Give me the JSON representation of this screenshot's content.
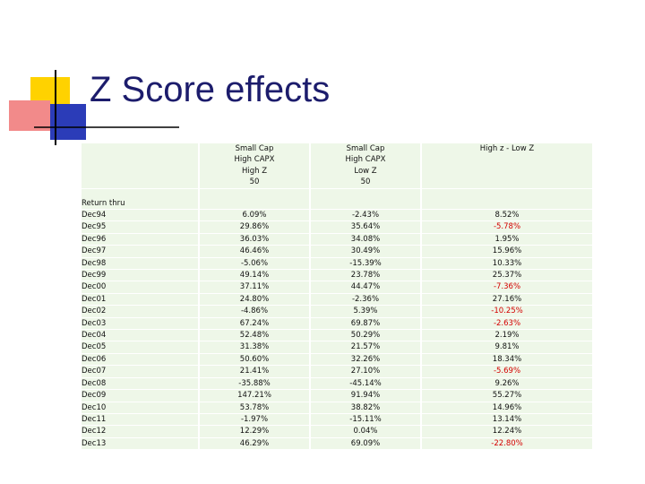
{
  "title": "Z Score effects",
  "table": {
    "columns": [
      {
        "lines": [
          "Small Cap",
          "High CAPX",
          "High Z",
          "50"
        ]
      },
      {
        "lines": [
          "Small Cap",
          "High CAPX",
          "Low Z",
          "50"
        ]
      },
      {
        "lines": [
          "High z - Low Z"
        ]
      }
    ],
    "row_label_header": "Return thru",
    "rows": [
      [
        "Dec94",
        "6.09%",
        "-2.43%",
        "8.52%"
      ],
      [
        "Dec95",
        "29.86%",
        "35.64%",
        "-5.78%"
      ],
      [
        "Dec96",
        "36.03%",
        "34.08%",
        "1.95%"
      ],
      [
        "Dec97",
        "46.46%",
        "30.49%",
        "15.96%"
      ],
      [
        "Dec98",
        "-5.06%",
        "-15.39%",
        "10.33%"
      ],
      [
        "Dec99",
        "49.14%",
        "23.78%",
        "25.37%"
      ],
      [
        "Dec00",
        "37.11%",
        "44.47%",
        "-7.36%"
      ],
      [
        "Dec01",
        "24.80%",
        "-2.36%",
        "27.16%"
      ],
      [
        "Dec02",
        "-4.86%",
        "5.39%",
        "-10.25%"
      ],
      [
        "Dec03",
        "67.24%",
        "69.87%",
        "-2.63%"
      ],
      [
        "Dec04",
        "52.48%",
        "50.29%",
        "2.19%"
      ],
      [
        "Dec05",
        "31.38%",
        "21.57%",
        "9.81%"
      ],
      [
        "Dec06",
        "50.60%",
        "32.26%",
        "18.34%"
      ],
      [
        "Dec07",
        "21.41%",
        "27.10%",
        "-5.69%"
      ],
      [
        "Dec08",
        "-35.88%",
        "-45.14%",
        "9.26%"
      ],
      [
        "Dec09",
        "147.21%",
        "91.94%",
        "55.27%"
      ],
      [
        "Dec10",
        "53.78%",
        "38.82%",
        "14.96%"
      ],
      [
        "Dec11",
        "-1.97%",
        "-15.11%",
        "13.14%"
      ],
      [
        "Dec12",
        "12.29%",
        "0.04%",
        "12.24%"
      ],
      [
        "Dec13",
        "46.29%",
        "69.09%",
        "-22.80%"
      ]
    ]
  }
}
